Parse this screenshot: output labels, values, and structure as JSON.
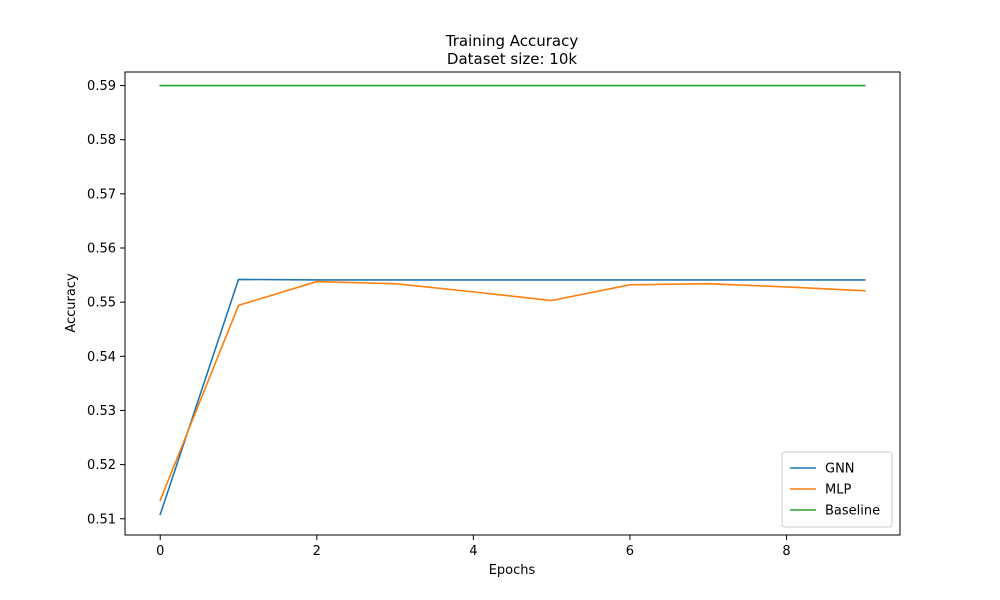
{
  "chart_data": {
    "type": "line",
    "title": "Training Accuracy",
    "subtitle": "Dataset size: 10k",
    "xlabel": "Epochs",
    "ylabel": "Accuracy",
    "xlim": [
      -0.45,
      9.45
    ],
    "ylim": [
      0.507,
      0.5925
    ],
    "xticks": [
      0,
      2,
      4,
      6,
      8
    ],
    "yticks": [
      0.51,
      0.52,
      0.53,
      0.54,
      0.55,
      0.56,
      0.57,
      0.58,
      0.59
    ],
    "ytick_labels": [
      "0.51",
      "0.52",
      "0.53",
      "0.54",
      "0.55",
      "0.56",
      "0.57",
      "0.58",
      "0.59"
    ],
    "grid": false,
    "legend_position": "lower-right",
    "x": [
      0,
      1,
      2,
      3,
      4,
      5,
      6,
      7,
      8,
      9
    ],
    "series": [
      {
        "name": "GNN",
        "color": "#1f77b4",
        "values": [
          0.5108,
          0.5542,
          0.5541,
          0.5541,
          0.5541,
          0.5541,
          0.5541,
          0.5541,
          0.5541,
          0.5541
        ]
      },
      {
        "name": "MLP",
        "color": "#ff7f0e",
        "values": [
          0.5134,
          0.5494,
          0.5538,
          0.5534,
          0.5519,
          0.5503,
          0.5532,
          0.5534,
          0.5528,
          0.5521
        ]
      },
      {
        "name": "Baseline",
        "color": "#2ca02c",
        "values": [
          0.59,
          0.59,
          0.59,
          0.59,
          0.59,
          0.59,
          0.59,
          0.59,
          0.59,
          0.59
        ]
      }
    ]
  }
}
